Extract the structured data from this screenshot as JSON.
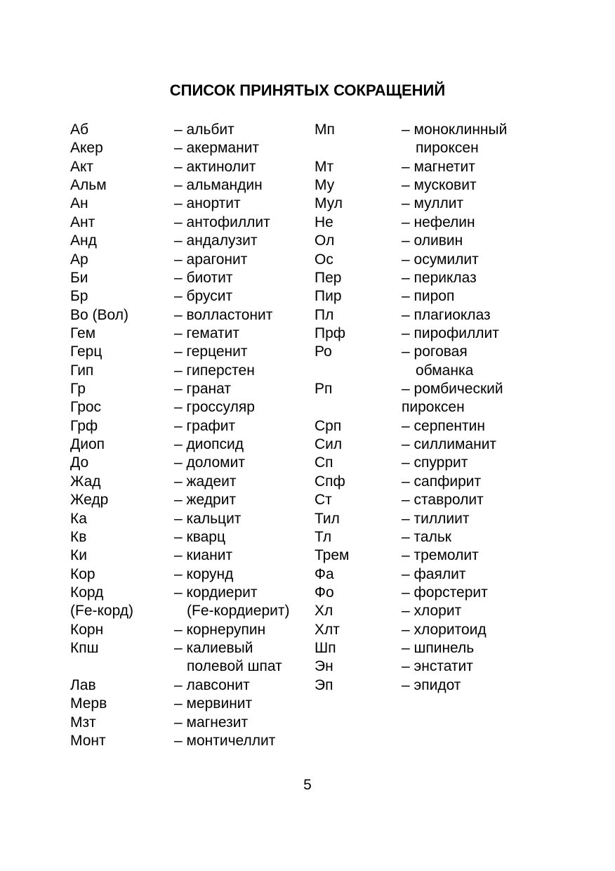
{
  "title": "СПИСОК ПРИНЯТЫХ СОКРАЩЕНИЙ",
  "page_number": "5",
  "lines": [
    [
      "Аб",
      "– альбит",
      "Мп",
      "– моноклинный"
    ],
    [
      "Акер",
      "– акерманит",
      "",
      "пироксен"
    ],
    [
      "Акт",
      "– актинолит",
      "Мт",
      "– магнетит"
    ],
    [
      "Альм",
      "– альмандин",
      "Му",
      "– мусковит"
    ],
    [
      "Ан",
      "– анортит",
      "Мул",
      "– муллит"
    ],
    [
      "Ант",
      "– антофиллит",
      "Не",
      "– нефелин"
    ],
    [
      "Анд",
      "– андалузит",
      "Ол",
      "– оливин"
    ],
    [
      "Ар",
      "– арагонит",
      "Ос",
      "– осумилит"
    ],
    [
      "Би",
      "– биотит",
      "Пер",
      "– периклаз"
    ],
    [
      "Бр",
      "– брусит",
      "Пир",
      "– пироп"
    ],
    [
      "Во (Вол)",
      "– волластонит",
      "Пл",
      "– плагиоклаз"
    ],
    [
      "Гем",
      "– гематит",
      "Прф",
      "– пирофиллит"
    ],
    [
      "Герц",
      "– герценит",
      "Ро",
      "– роговая"
    ],
    [
      "Гип",
      "– гиперстен",
      "",
      "обманка"
    ],
    [
      "Гр",
      "– гранат",
      "Рп",
      "– ромбический"
    ],
    [
      "Грос",
      "– гроссуляр",
      "",
      "пироксен"
    ],
    [
      "Грф",
      "– графит",
      "Срп",
      "– серпентин"
    ],
    [
      "Диоп",
      "– диопсид",
      "Сил",
      "– силлиманит"
    ],
    [
      "До",
      "– доломит",
      "Сп",
      "– спуррит"
    ],
    [
      "Жад",
      "– жадеит",
      "Спф",
      "– сапфирит"
    ],
    [
      "Жедр",
      "– жедрит",
      "Ст",
      "– ставролит"
    ],
    [
      "Ка",
      "– кальцит",
      "Тил",
      "– тиллиит"
    ],
    [
      "Кв",
      "– кварц",
      "Тл",
      "– тальк"
    ],
    [
      "Ки",
      "– кианит",
      "Трем",
      "– тремолит"
    ],
    [
      "Кор",
      "– корунд",
      "Фа",
      "– фаялит"
    ],
    [
      "Корд",
      "– кордиерит",
      "Фо",
      "– форстерит"
    ],
    [
      "(Fe-корд)",
      "(Fe-кордиерит)",
      "Хл",
      "– хлорит"
    ],
    [
      "Корн",
      "– корнерупин",
      "Хлт",
      "– хлоритоид"
    ],
    [
      "Кпш",
      "– калиевый",
      "Шп",
      "– шпинель"
    ],
    [
      "",
      "полевой шпат",
      "Эн",
      "– энстатит"
    ],
    [
      "Лав",
      "– лавсонит",
      "Эп",
      "– эпидот"
    ],
    [
      "Мерв",
      "– мервинит",
      "",
      ""
    ],
    [
      "Мзт",
      "– магнезит",
      "",
      ""
    ],
    [
      "Монт",
      "– монтичеллит",
      "",
      ""
    ]
  ]
}
